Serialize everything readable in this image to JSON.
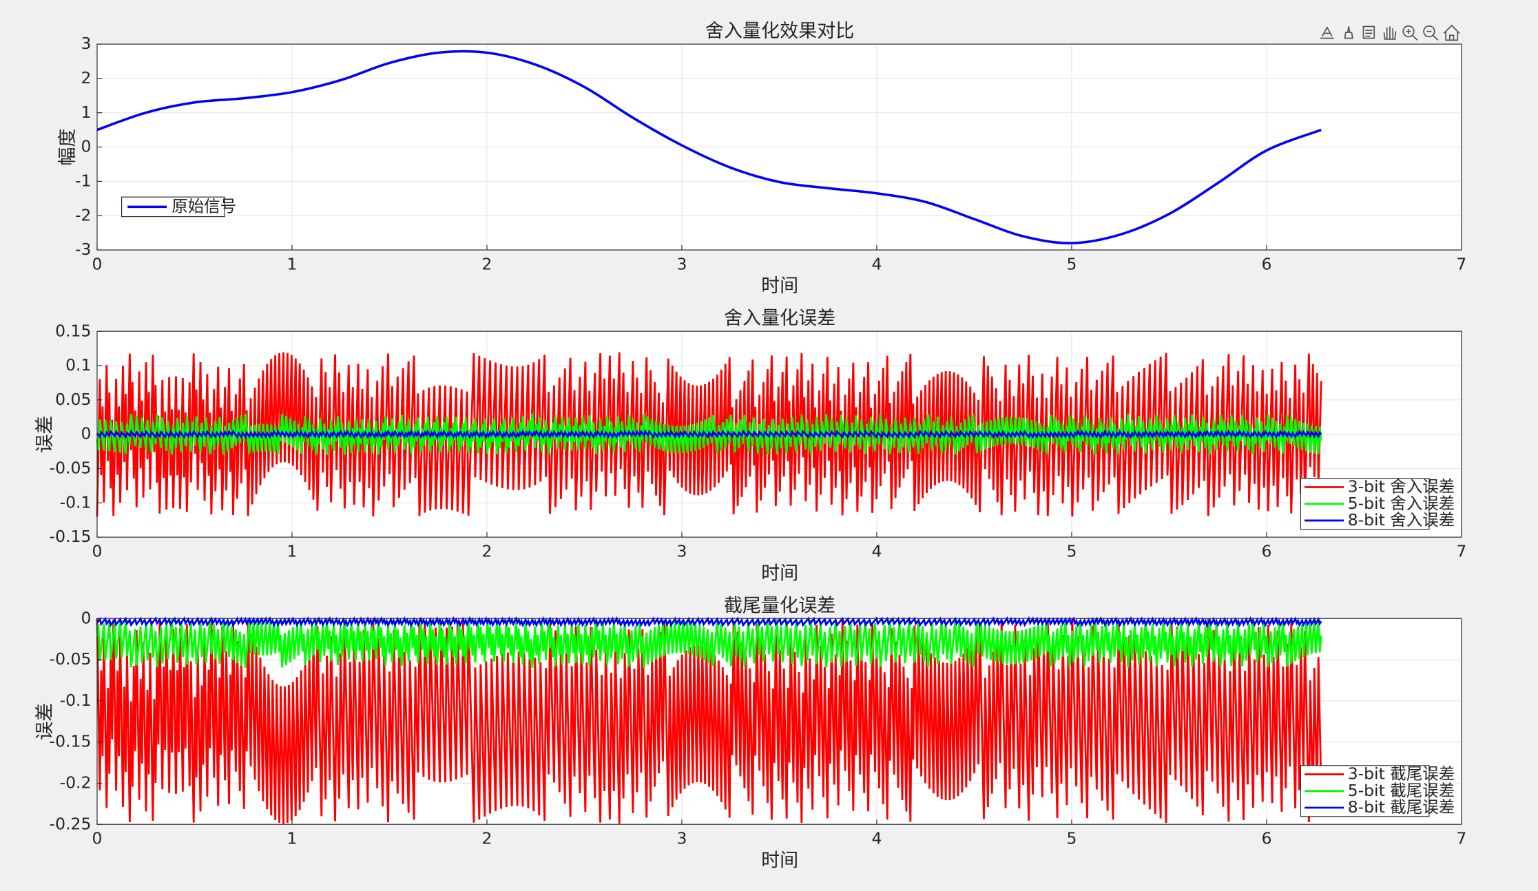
{
  "toolbar": {
    "icons": [
      "export-icon",
      "brush-icon",
      "datatip-icon",
      "pan-icon",
      "zoom-in-icon",
      "zoom-out-icon",
      "home-icon"
    ]
  },
  "colors": {
    "figure_bg": "#f0f0f0",
    "axes_bg": "#ffffff",
    "grid": "#e6e6e6",
    "axis": "#262626",
    "red": "#ff0000",
    "green": "#00ff00",
    "blue": "#0000ff",
    "dashed_green": "#22c55e"
  },
  "chart_data": [
    {
      "type": "line",
      "title": "舍入量化效果对比",
      "xlabel": "时间",
      "ylabel": "幅度",
      "xlim": [
        0,
        7
      ],
      "ylim": [
        -3,
        3
      ],
      "xticks": [
        "0",
        "1",
        "2",
        "3",
        "4",
        "5",
        "6",
        "7"
      ],
      "yticks": [
        "-3",
        "-2",
        "-1",
        "0",
        "1",
        "2",
        "3"
      ],
      "grid": true,
      "legend": {
        "location": "bottom-left",
        "entries": [
          "原始信号"
        ]
      },
      "x": [
        0,
        0.25,
        0.5,
        0.75,
        1,
        1.25,
        1.5,
        1.75,
        2,
        2.25,
        2.5,
        2.75,
        3,
        3.25,
        3.5,
        3.75,
        4,
        4.25,
        4.5,
        4.75,
        5,
        5.25,
        5.5,
        5.75,
        6,
        6.28
      ],
      "series": [
        {
          "name": "原始信号",
          "color": "#0000ff",
          "style": "solid",
          "values": [
            0.5,
            1.0,
            1.3,
            1.42,
            1.6,
            1.95,
            2.45,
            2.75,
            2.75,
            2.4,
            1.75,
            0.85,
            0.05,
            -0.6,
            -1.02,
            -1.2,
            -1.35,
            -1.6,
            -2.1,
            -2.6,
            -2.8,
            -2.55,
            -1.95,
            -1.05,
            -0.1,
            0.5
          ]
        },
        {
          "color": "#ff0000",
          "style": "dashed",
          "values": [
            0.5,
            1.0,
            1.3,
            1.42,
            1.6,
            1.95,
            2.45,
            2.75,
            2.75,
            2.4,
            1.75,
            0.85,
            0.05,
            -0.6,
            -1.02,
            -1.2,
            -1.35,
            -1.6,
            -2.1,
            -2.6,
            -2.8,
            -2.55,
            -1.95,
            -1.05,
            -0.1,
            0.5
          ]
        },
        {
          "color": "#22c55e",
          "style": "dashed",
          "values": [
            0.5,
            1.0,
            1.3,
            1.42,
            1.6,
            1.95,
            2.45,
            2.75,
            2.75,
            2.4,
            1.75,
            0.85,
            0.05,
            -0.6,
            -1.02,
            -1.2,
            -1.35,
            -1.6,
            -2.1,
            -2.6,
            -2.8,
            -2.55,
            -1.95,
            -1.05,
            -0.1,
            0.5
          ]
        }
      ]
    },
    {
      "type": "line",
      "title": "舍入量化误差",
      "xlabel": "时间",
      "ylabel": "误差",
      "xlim": [
        0,
        7
      ],
      "ylim": [
        -0.15,
        0.15
      ],
      "xticks": [
        "0",
        "1",
        "2",
        "3",
        "4",
        "5",
        "6",
        "7"
      ],
      "yticks": [
        "-0.15",
        "-0.1",
        "-0.05",
        "0",
        "0.05",
        "0.1",
        "0.15"
      ],
      "grid": true,
      "legend": {
        "location": "bottom-right",
        "entries": [
          "3-bit 舍入误差",
          "5-bit 舍入误差",
          "8-bit 舍入误差"
        ]
      },
      "x_end": 6.28,
      "series": [
        {
          "name": "3-bit 舍入误差",
          "color": "#ff0000",
          "amplitude": 0.12
        },
        {
          "name": "5-bit 舍入误差",
          "color": "#00ff00",
          "amplitude": 0.03
        },
        {
          "name": "8-bit 舍入误差",
          "color": "#0000ff",
          "amplitude": 0.004
        }
      ]
    },
    {
      "type": "line",
      "title": "截尾量化误差",
      "xlabel": "时间",
      "ylabel": "误差",
      "xlim": [
        0,
        7
      ],
      "ylim": [
        -0.25,
        0
      ],
      "xticks": [
        "0",
        "1",
        "2",
        "3",
        "4",
        "5",
        "6",
        "7"
      ],
      "yticks": [
        "-0.25",
        "-0.2",
        "-0.15",
        "-0.1",
        "-0.05",
        "0"
      ],
      "grid": true,
      "legend": {
        "location": "bottom-right",
        "entries": [
          "3-bit 截尾误差",
          "5-bit 截尾误差",
          "8-bit 截尾误差"
        ]
      },
      "x_end": 6.28,
      "series": [
        {
          "name": "3-bit 截尾误差",
          "color": "#ff0000",
          "amplitude": 0.25
        },
        {
          "name": "5-bit 截尾误差",
          "color": "#00ff00",
          "amplitude": 0.06
        },
        {
          "name": "8-bit 截尾误差",
          "color": "#0000ff",
          "amplitude": 0.008
        }
      ]
    }
  ]
}
